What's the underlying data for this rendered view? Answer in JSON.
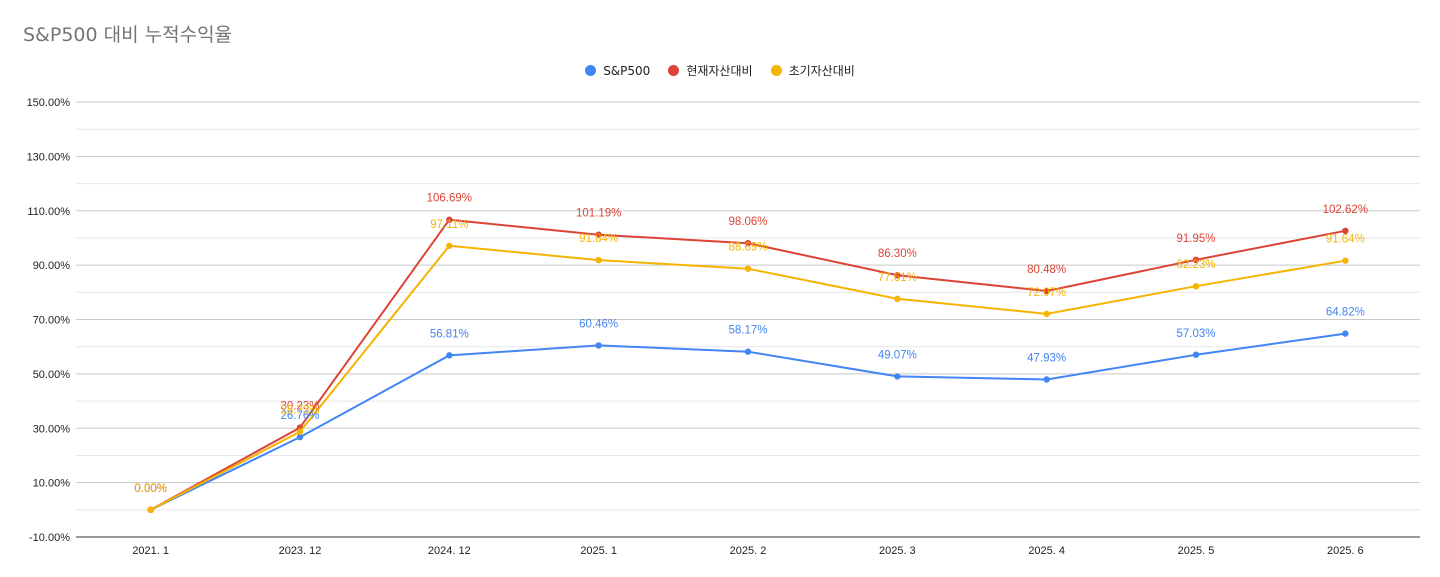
{
  "chart_data": {
    "type": "line",
    "title": "S&P500 대비 누적수익율",
    "categories": [
      "2021. 1",
      "2023. 12",
      "2024. 12",
      "2025. 1",
      "2025. 2",
      "2025. 3",
      "2025. 4",
      "2025. 5",
      "2025. 6"
    ],
    "series": [
      {
        "name": "S&P500",
        "color": "#4285f4",
        "values": [
          0,
          26.76,
          56.81,
          60.46,
          58.17,
          49.07,
          47.93,
          57.03,
          64.82
        ],
        "labels": [
          "0.00%",
          "26.76%",
          "56.81%",
          "60.46%",
          "58.17%",
          "49.07%",
          "47.93%",
          "57.03%",
          "64.82%"
        ]
      },
      {
        "name": "현재자산대비",
        "color": "#db4437",
        "values": [
          0,
          30.23,
          106.69,
          101.19,
          98.06,
          86.3,
          80.48,
          91.95,
          102.62
        ],
        "labels": [
          "0.00%",
          "30.23%",
          "106.69%",
          "101.19%",
          "98.06%",
          "86.30%",
          "80.48%",
          "91.95%",
          "102.62%"
        ]
      },
      {
        "name": "초기자산대비",
        "color": "#f4b400",
        "values": [
          0,
          28.73,
          97.11,
          91.84,
          88.69,
          77.61,
          72.07,
          82.23,
          91.64
        ],
        "labels": [
          "0.00%",
          "28.73%",
          "97.11%",
          "91.84%",
          "88.69%",
          "77.61%",
          "72.07%",
          "82.23%",
          "91.64%"
        ]
      }
    ],
    "yticks": [
      "150.00%",
      "130.00%",
      "110.00%",
      "90.00%",
      "70.00%",
      "50.00%",
      "30.00%",
      "10.00%",
      "-10.00%"
    ],
    "ylim": [
      -10,
      150
    ],
    "xlabel": "",
    "ylabel": "",
    "grid": true,
    "legend_position": "top-center"
  }
}
